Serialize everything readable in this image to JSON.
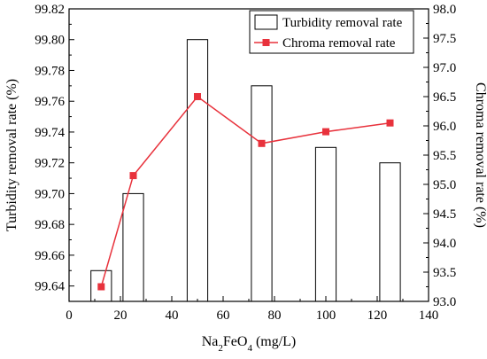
{
  "chart_data": {
    "type": "bar",
    "xlabel_base": "Na",
    "xlabel_sub1": "2",
    "xlabel_mid": "FeO",
    "xlabel_sub2": "4",
    "xlabel_tail": " (mg/L)",
    "ylabel_left": "Turbidity removal rate (%)",
    "ylabel_right": "Chroma removal rate (%)",
    "xlim": [
      0,
      140
    ],
    "x_ticks": [
      0,
      20,
      40,
      60,
      80,
      100,
      120,
      140
    ],
    "ylim_left": [
      99.63,
      99.82
    ],
    "y_ticks_left": [
      99.64,
      99.66,
      99.68,
      99.7,
      99.72,
      99.74,
      99.76,
      99.78,
      99.8,
      99.82
    ],
    "ylim_right": [
      93.0,
      98.0
    ],
    "y_ticks_right": [
      93.0,
      93.5,
      94.0,
      94.5,
      95.0,
      95.5,
      96.0,
      96.5,
      97.0,
      97.5,
      98.0
    ],
    "grid": false,
    "legend_position": "top-right",
    "bar_width": 8,
    "series": [
      {
        "name": "Turbidity removal rate",
        "type": "bar",
        "axis": "left",
        "x": [
          12.5,
          25,
          50,
          75,
          100,
          125
        ],
        "values": [
          99.65,
          99.7,
          99.8,
          99.77,
          99.73,
          99.72
        ],
        "color": "#000000"
      },
      {
        "name": "Chroma removal rate",
        "type": "line",
        "axis": "right",
        "x": [
          12.5,
          25,
          50,
          75,
          100,
          125
        ],
        "values": [
          93.25,
          95.15,
          96.5,
          95.7,
          95.9,
          96.05
        ],
        "color": "#e8323c"
      }
    ]
  }
}
